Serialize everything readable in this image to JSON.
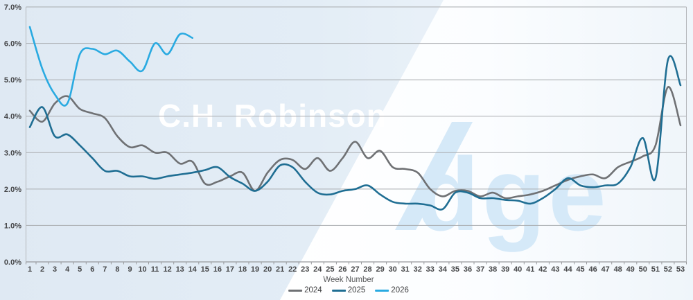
{
  "watermark": {
    "brand": "C.H. Robinson",
    "product": "Edge"
  },
  "axes": {
    "x_label": "Week Number",
    "y_ticks": [
      "0.0%",
      "1.0%",
      "2.0%",
      "3.0%",
      "4.0%",
      "5.0%",
      "6.0%",
      "7.0%"
    ]
  },
  "legend": {
    "items": [
      {
        "label": "2024",
        "color": "#6f7174"
      },
      {
        "label": "2025",
        "color": "#1f6e93"
      },
      {
        "label": "2026",
        "color": "#29aae1"
      }
    ]
  },
  "colors": {
    "grid": "#a9acaf",
    "axis_line": "#97999c",
    "plot_border": "#b4b7ba",
    "tick_text": "#454648",
    "plot_bg_left": "#dfe9f3",
    "plot_bg_right": "#eef5fa",
    "diagonal_band": "#ffffff",
    "watermark_brand_color": "#ffffff",
    "watermark_product_color": "#d5e9f8"
  },
  "chart_data": {
    "type": "line",
    "title": "",
    "xlabel": "Week Number",
    "ylabel": "",
    "ylim": [
      0,
      7
    ],
    "y_tick_step": 1,
    "y_format": "percent_one_decimal",
    "grid": true,
    "legend_position": "bottom",
    "x": [
      1,
      2,
      3,
      4,
      5,
      6,
      7,
      8,
      9,
      10,
      11,
      12,
      13,
      14,
      15,
      16,
      17,
      18,
      19,
      20,
      21,
      22,
      23,
      24,
      25,
      26,
      27,
      28,
      29,
      30,
      31,
      32,
      33,
      34,
      35,
      36,
      37,
      38,
      39,
      40,
      41,
      42,
      43,
      44,
      45,
      46,
      47,
      48,
      49,
      50,
      51,
      52,
      53
    ],
    "series": [
      {
        "name": "2024",
        "color": "#6f7174",
        "values": [
          4.15,
          3.85,
          4.35,
          4.55,
          4.2,
          4.08,
          3.95,
          3.45,
          3.15,
          3.2,
          3.0,
          3.0,
          2.7,
          2.75,
          2.15,
          2.2,
          2.35,
          2.45,
          1.95,
          2.45,
          2.8,
          2.8,
          2.55,
          2.85,
          2.5,
          2.85,
          3.3,
          2.85,
          3.05,
          2.6,
          2.55,
          2.45,
          2.0,
          1.8,
          1.95,
          1.95,
          1.8,
          1.9,
          1.75,
          1.8,
          1.85,
          1.95,
          2.1,
          2.25,
          2.35,
          2.4,
          2.3,
          2.6,
          2.75,
          2.9,
          3.2,
          4.8,
          3.75
        ]
      },
      {
        "name": "2025",
        "color": "#1f6e93",
        "values": [
          3.7,
          4.25,
          3.45,
          3.5,
          3.2,
          2.85,
          2.5,
          2.5,
          2.35,
          2.35,
          2.28,
          2.35,
          2.4,
          2.45,
          2.52,
          2.6,
          2.33,
          2.15,
          1.95,
          2.2,
          2.65,
          2.6,
          2.2,
          1.9,
          1.85,
          1.95,
          2.0,
          2.1,
          1.85,
          1.65,
          1.6,
          1.6,
          1.55,
          1.45,
          1.9,
          1.9,
          1.75,
          1.75,
          1.7,
          1.68,
          1.6,
          1.75,
          2.0,
          2.3,
          2.1,
          2.05,
          2.1,
          2.15,
          2.6,
          3.4,
          2.3,
          5.55,
          4.85
        ]
      },
      {
        "name": "2026",
        "color": "#29aae1",
        "values": [
          6.45,
          5.3,
          4.6,
          4.35,
          5.7,
          5.85,
          5.7,
          5.8,
          5.5,
          5.25,
          6.0,
          5.7,
          6.25,
          6.15
        ]
      }
    ]
  }
}
